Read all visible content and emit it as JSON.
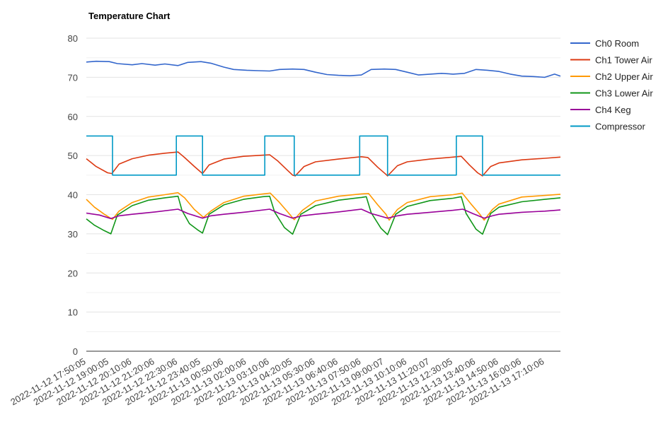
{
  "chart_data": {
    "type": "line",
    "title": "Temperature Chart",
    "xlabel": "",
    "ylabel": "",
    "ylim": [
      0,
      80
    ],
    "yticks": [
      0,
      10,
      20,
      30,
      40,
      50,
      60,
      70,
      80
    ],
    "grid": true,
    "legend": "right",
    "x_tick_labels": [
      "2022-11-12 17:50:05",
      "2022-11-12 19:00:05",
      "2022-11-12 20:10:06",
      "2022-11-12 21:20:06",
      "2022-11-12 22:30:06",
      "2022-11-12 23:40:05",
      "2022-11-13 00:50:06",
      "2022-11-13 02:00:06",
      "2022-11-13 03:10:06",
      "2022-11-13 04:20:05",
      "2022-11-13 05:30:06",
      "2022-11-13 06:40:06",
      "2022-11-13 07:50:06",
      "2022-11-13 09:00:07",
      "2022-11-13 10:10:06",
      "2022-11-13 11:20:07",
      "2022-11-13 12:30:05",
      "2022-11-13 13:40:06",
      "2022-11-13 14:50:06",
      "2022-11-13 16:00:06",
      "2022-11-13 17:10:06"
    ],
    "x_range": [
      "2022-11-12 17:50:05",
      "2022-11-13 17:58:00"
    ],
    "series": [
      {
        "name": "Ch0 Room",
        "color": "#3366cc",
        "points": [
          [
            "2022-11-12 17:50:05",
            73.9
          ],
          [
            "2022-11-12 18:20:00",
            74.1
          ],
          [
            "2022-11-12 19:00:05",
            74.0
          ],
          [
            "2022-11-12 19:25:00",
            73.5
          ],
          [
            "2022-11-12 20:10:06",
            73.2
          ],
          [
            "2022-11-12 20:40:00",
            73.5
          ],
          [
            "2022-11-12 21:20:06",
            73.1
          ],
          [
            "2022-11-12 21:50:00",
            73.4
          ],
          [
            "2022-11-12 22:30:06",
            73.0
          ],
          [
            "2022-11-12 23:00:00",
            73.8
          ],
          [
            "2022-11-12 23:40:05",
            74.0
          ],
          [
            "2022-11-13 00:10:00",
            73.6
          ],
          [
            "2022-11-13 00:50:06",
            72.6
          ],
          [
            "2022-11-13 01:20:00",
            72.0
          ],
          [
            "2022-11-13 02:00:06",
            71.8
          ],
          [
            "2022-11-13 02:35:00",
            71.7
          ],
          [
            "2022-11-13 03:10:06",
            71.6
          ],
          [
            "2022-11-13 03:40:00",
            72.0
          ],
          [
            "2022-11-13 04:20:05",
            72.1
          ],
          [
            "2022-11-13 04:55:00",
            72.0
          ],
          [
            "2022-11-13 05:30:06",
            71.3
          ],
          [
            "2022-11-13 06:05:00",
            70.7
          ],
          [
            "2022-11-13 06:40:06",
            70.5
          ],
          [
            "2022-11-13 07:15:00",
            70.4
          ],
          [
            "2022-11-13 07:50:06",
            70.6
          ],
          [
            "2022-11-13 08:20:00",
            72.0
          ],
          [
            "2022-11-13 09:00:07",
            72.1
          ],
          [
            "2022-11-13 09:35:00",
            72.0
          ],
          [
            "2022-11-13 10:10:06",
            71.3
          ],
          [
            "2022-11-13 10:45:00",
            70.6
          ],
          [
            "2022-11-13 11:20:07",
            70.8
          ],
          [
            "2022-11-13 11:55:00",
            71.0
          ],
          [
            "2022-11-13 12:30:05",
            70.8
          ],
          [
            "2022-11-13 13:05:00",
            71.0
          ],
          [
            "2022-11-13 13:40:06",
            72.0
          ],
          [
            "2022-11-13 14:15:00",
            71.8
          ],
          [
            "2022-11-13 14:50:06",
            71.5
          ],
          [
            "2022-11-13 15:25:00",
            70.8
          ],
          [
            "2022-11-13 16:00:06",
            70.3
          ],
          [
            "2022-11-13 16:35:00",
            70.2
          ],
          [
            "2022-11-13 17:10:06",
            70.0
          ],
          [
            "2022-11-13 17:40:00",
            70.8
          ],
          [
            "2022-11-13 17:58:00",
            70.3
          ]
        ]
      },
      {
        "name": "Ch1 Tower Air",
        "color": "#dc3912",
        "points": [
          [
            "2022-11-12 17:50:05",
            49.2
          ],
          [
            "2022-11-12 18:20:00",
            47.2
          ],
          [
            "2022-11-12 18:55:00",
            45.6
          ],
          [
            "2022-11-12 19:08:00",
            45.4
          ],
          [
            "2022-11-12 19:30:00",
            47.8
          ],
          [
            "2022-11-12 20:10:06",
            49.2
          ],
          [
            "2022-11-12 21:00:00",
            50.1
          ],
          [
            "2022-11-12 21:50:00",
            50.6
          ],
          [
            "2022-11-12 22:30:06",
            50.9
          ],
          [
            "2022-11-12 22:50:00",
            49.5
          ],
          [
            "2022-11-12 23:20:00",
            47.2
          ],
          [
            "2022-11-12 23:45:00",
            45.4
          ],
          [
            "2022-11-13 00:05:00",
            47.6
          ],
          [
            "2022-11-13 00:50:06",
            49.1
          ],
          [
            "2022-11-13 01:50:00",
            49.8
          ],
          [
            "2022-11-13 02:50:00",
            50.1
          ],
          [
            "2022-11-13 03:10:06",
            50.2
          ],
          [
            "2022-11-13 03:35:00",
            48.6
          ],
          [
            "2022-11-13 04:05:00",
            46.2
          ],
          [
            "2022-11-13 04:20:05",
            45.0
          ],
          [
            "2022-11-13 04:28:00",
            44.8
          ],
          [
            "2022-11-13 04:55:00",
            47.2
          ],
          [
            "2022-11-13 05:30:06",
            48.4
          ],
          [
            "2022-11-13 06:40:06",
            49.1
          ],
          [
            "2022-11-13 07:50:06",
            49.7
          ],
          [
            "2022-11-13 08:10:00",
            49.5
          ],
          [
            "2022-11-13 08:40:00",
            47.0
          ],
          [
            "2022-11-13 09:05:00",
            45.2
          ],
          [
            "2022-11-13 09:10:00",
            44.8
          ],
          [
            "2022-11-13 09:40:00",
            47.4
          ],
          [
            "2022-11-13 10:10:06",
            48.4
          ],
          [
            "2022-11-13 11:20:07",
            49.1
          ],
          [
            "2022-11-13 12:30:05",
            49.6
          ],
          [
            "2022-11-13 12:55:00",
            49.8
          ],
          [
            "2022-11-13 13:20:00",
            47.6
          ],
          [
            "2022-11-13 13:45:00",
            45.6
          ],
          [
            "2022-11-13 14:00:00",
            44.8
          ],
          [
            "2022-11-13 14:25:00",
            47.2
          ],
          [
            "2022-11-13 14:50:06",
            48.1
          ],
          [
            "2022-11-13 16:00:06",
            48.9
          ],
          [
            "2022-11-13 17:10:06",
            49.3
          ],
          [
            "2022-11-13 17:58:00",
            49.6
          ]
        ]
      },
      {
        "name": "Ch2 Upper Air",
        "color": "#ff9900",
        "points": [
          [
            "2022-11-12 17:50:05",
            38.8
          ],
          [
            "2022-11-12 18:15:00",
            36.8
          ],
          [
            "2022-11-12 18:45:00",
            35.0
          ],
          [
            "2022-11-12 19:10:00",
            33.7
          ],
          [
            "2022-11-12 19:30:00",
            35.8
          ],
          [
            "2022-11-12 20:10:06",
            38.0
          ],
          [
            "2022-11-12 21:00:00",
            39.4
          ],
          [
            "2022-11-12 21:50:00",
            40.0
          ],
          [
            "2022-11-12 22:30:06",
            40.5
          ],
          [
            "2022-11-12 22:50:00",
            39.2
          ],
          [
            "2022-11-12 23:20:00",
            36.2
          ],
          [
            "2022-11-12 23:48:00",
            34.2
          ],
          [
            "2022-11-13 00:10:00",
            35.8
          ],
          [
            "2022-11-13 00:50:06",
            38.0
          ],
          [
            "2022-11-13 01:50:00",
            39.6
          ],
          [
            "2022-11-13 02:50:00",
            40.2
          ],
          [
            "2022-11-13 03:12:00",
            40.4
          ],
          [
            "2022-11-13 03:40:00",
            38.0
          ],
          [
            "2022-11-13 04:05:00",
            35.6
          ],
          [
            "2022-11-13 04:25:00",
            33.6
          ],
          [
            "2022-11-13 04:50:00",
            36.0
          ],
          [
            "2022-11-13 05:30:06",
            38.4
          ],
          [
            "2022-11-13 06:40:06",
            39.6
          ],
          [
            "2022-11-13 07:50:06",
            40.2
          ],
          [
            "2022-11-13 08:12:00",
            40.3
          ],
          [
            "2022-11-13 08:40:00",
            37.4
          ],
          [
            "2022-11-13 09:05:00",
            35.0
          ],
          [
            "2022-11-13 09:15:00",
            33.5
          ],
          [
            "2022-11-13 09:40:00",
            36.2
          ],
          [
            "2022-11-13 10:10:06",
            38.0
          ],
          [
            "2022-11-13 11:20:07",
            39.5
          ],
          [
            "2022-11-13 12:30:05",
            40.0
          ],
          [
            "2022-11-13 12:58:00",
            40.4
          ],
          [
            "2022-11-13 13:25:00",
            37.6
          ],
          [
            "2022-11-13 13:50:00",
            35.2
          ],
          [
            "2022-11-13 14:05:00",
            33.5
          ],
          [
            "2022-11-13 14:30:00",
            36.2
          ],
          [
            "2022-11-13 14:50:06",
            37.6
          ],
          [
            "2022-11-13 16:00:06",
            39.4
          ],
          [
            "2022-11-13 17:10:06",
            39.8
          ],
          [
            "2022-11-13 17:58:00",
            40.1
          ]
        ]
      },
      {
        "name": "Ch3 Lower Air",
        "color": "#109618",
        "points": [
          [
            "2022-11-12 17:50:05",
            33.8
          ],
          [
            "2022-11-12 18:15:00",
            32.2
          ],
          [
            "2022-11-12 18:45:00",
            30.8
          ],
          [
            "2022-11-12 19:05:00",
            30.0
          ],
          [
            "2022-11-12 19:25:00",
            34.8
          ],
          [
            "2022-11-12 20:10:06",
            37.2
          ],
          [
            "2022-11-12 21:00:00",
            38.6
          ],
          [
            "2022-11-12 21:50:00",
            39.2
          ],
          [
            "2022-11-12 22:30:06",
            39.6
          ],
          [
            "2022-11-12 22:42:00",
            36.0
          ],
          [
            "2022-11-12 23:05:00",
            32.6
          ],
          [
            "2022-11-12 23:30:00",
            31.0
          ],
          [
            "2022-11-12 23:45:00",
            30.2
          ],
          [
            "2022-11-13 00:05:00",
            35.0
          ],
          [
            "2022-11-13 00:50:06",
            37.4
          ],
          [
            "2022-11-13 01:50:00",
            38.8
          ],
          [
            "2022-11-13 02:50:00",
            39.5
          ],
          [
            "2022-11-13 03:10:06",
            39.6
          ],
          [
            "2022-11-13 03:25:00",
            35.6
          ],
          [
            "2022-11-13 03:55:00",
            31.6
          ],
          [
            "2022-11-13 04:20:05",
            29.9
          ],
          [
            "2022-11-13 04:45:00",
            35.0
          ],
          [
            "2022-11-13 05:30:06",
            37.2
          ],
          [
            "2022-11-13 06:40:06",
            38.6
          ],
          [
            "2022-11-13 07:50:06",
            39.3
          ],
          [
            "2022-11-13 08:05:00",
            39.5
          ],
          [
            "2022-11-13 08:20:00",
            35.4
          ],
          [
            "2022-11-13 08:50:00",
            31.4
          ],
          [
            "2022-11-13 09:10:00",
            29.8
          ],
          [
            "2022-11-13 09:35:00",
            35.0
          ],
          [
            "2022-11-13 10:10:06",
            37.0
          ],
          [
            "2022-11-13 11:20:07",
            38.5
          ],
          [
            "2022-11-13 12:30:05",
            39.1
          ],
          [
            "2022-11-13 12:55:00",
            39.5
          ],
          [
            "2022-11-13 13:10:00",
            35.2
          ],
          [
            "2022-11-13 13:40:00",
            31.2
          ],
          [
            "2022-11-13 14:00:00",
            29.9
          ],
          [
            "2022-11-13 14:25:00",
            35.2
          ],
          [
            "2022-11-13 14:50:06",
            36.8
          ],
          [
            "2022-11-13 16:00:06",
            38.2
          ],
          [
            "2022-11-13 17:10:06",
            38.8
          ],
          [
            "2022-11-13 17:58:00",
            39.2
          ]
        ]
      },
      {
        "name": "Ch4 Keg",
        "color": "#990099",
        "points": [
          [
            "2022-11-12 17:50:05",
            35.3
          ],
          [
            "2022-11-12 18:30:00",
            34.8
          ],
          [
            "2022-11-12 19:05:00",
            33.9
          ],
          [
            "2022-11-12 19:30:00",
            34.6
          ],
          [
            "2022-11-12 20:10:06",
            35.0
          ],
          [
            "2022-11-12 21:20:06",
            35.6
          ],
          [
            "2022-11-12 22:30:06",
            36.3
          ],
          [
            "2022-11-12 23:00:00",
            35.2
          ],
          [
            "2022-11-12 23:45:00",
            34.0
          ],
          [
            "2022-11-13 00:10:00",
            34.6
          ],
          [
            "2022-11-13 00:50:06",
            35.0
          ],
          [
            "2022-11-13 02:00:06",
            35.6
          ],
          [
            "2022-11-13 03:10:06",
            36.3
          ],
          [
            "2022-11-13 03:40:00",
            35.2
          ],
          [
            "2022-11-13 04:20:05",
            34.0
          ],
          [
            "2022-11-13 04:50:00",
            34.6
          ],
          [
            "2022-11-13 05:30:06",
            35.0
          ],
          [
            "2022-11-13 06:40:06",
            35.6
          ],
          [
            "2022-11-13 07:50:06",
            36.3
          ],
          [
            "2022-11-13 08:20:00",
            35.2
          ],
          [
            "2022-11-13 09:10:00",
            34.0
          ],
          [
            "2022-11-13 09:40:00",
            34.6
          ],
          [
            "2022-11-13 10:10:06",
            35.0
          ],
          [
            "2022-11-13 11:20:07",
            35.5
          ],
          [
            "2022-11-13 12:30:05",
            36.0
          ],
          [
            "2022-11-13 13:00:00",
            36.3
          ],
          [
            "2022-11-13 13:30:00",
            35.2
          ],
          [
            "2022-11-13 14:05:00",
            34.0
          ],
          [
            "2022-11-13 14:30:00",
            34.6
          ],
          [
            "2022-11-13 14:50:06",
            35.0
          ],
          [
            "2022-11-13 16:00:06",
            35.5
          ],
          [
            "2022-11-13 17:10:06",
            35.8
          ],
          [
            "2022-11-13 17:58:00",
            36.1
          ]
        ]
      },
      {
        "name": "Compressor",
        "color": "#0099c6",
        "points": [
          [
            "2022-11-12 17:50:05",
            55
          ],
          [
            "2022-11-12 19:10:00",
            55
          ],
          [
            "2022-11-12 19:10:00",
            45
          ],
          [
            "2022-11-12 22:25:00",
            45
          ],
          [
            "2022-11-12 22:25:00",
            55
          ],
          [
            "2022-11-12 23:45:00",
            55
          ],
          [
            "2022-11-12 23:45:00",
            45
          ],
          [
            "2022-11-13 02:55:00",
            45
          ],
          [
            "2022-11-13 02:55:00",
            55
          ],
          [
            "2022-11-13 04:25:00",
            55
          ],
          [
            "2022-11-13 04:25:00",
            45
          ],
          [
            "2022-11-13 07:45:00",
            45
          ],
          [
            "2022-11-13 07:45:00",
            55
          ],
          [
            "2022-11-13 09:10:00",
            55
          ],
          [
            "2022-11-13 09:10:00",
            45
          ],
          [
            "2022-11-13 12:40:00",
            45
          ],
          [
            "2022-11-13 12:40:00",
            55
          ],
          [
            "2022-11-13 14:00:00",
            55
          ],
          [
            "2022-11-13 14:00:00",
            45
          ],
          [
            "2022-11-13 17:58:00",
            45
          ]
        ]
      }
    ]
  }
}
